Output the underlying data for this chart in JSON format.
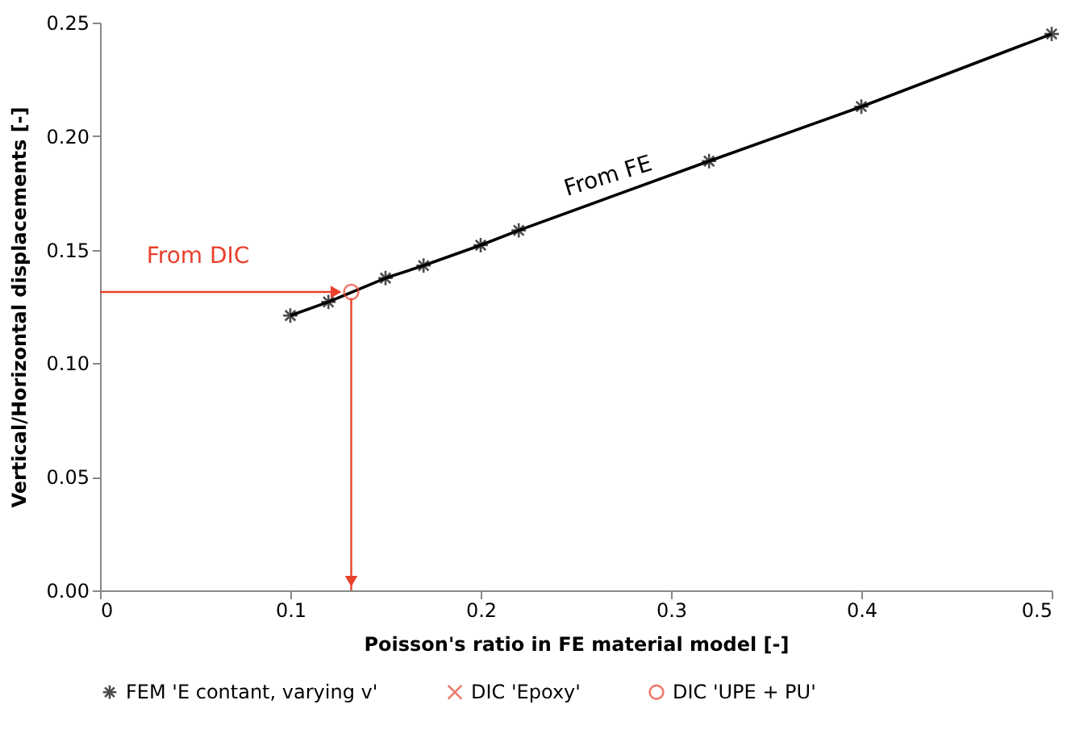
{
  "chart_data": {
    "type": "line",
    "xlabel": "Poisson's ratio in FE material model [-]",
    "ylabel": "Vertical/Horizontal displacements [-]",
    "xlim": [
      0,
      0.5
    ],
    "xticks": [
      0,
      0.1,
      0.2,
      0.3,
      0.4,
      0.5
    ],
    "ylim": [
      0,
      0.25
    ],
    "yticks": [
      {
        "value": 0,
        "label": "0.00"
      },
      {
        "value": 0.05,
        "label": "0.05"
      },
      {
        "value": 0.1,
        "label": "0.10"
      },
      {
        "value": 0.15,
        "label": "0.15"
      },
      {
        "value": 0.2,
        "label": "0.20"
      },
      {
        "value": 0.25,
        "label": "0.25"
      }
    ],
    "legend": "bottom",
    "grid": false,
    "series": [
      {
        "name": "FEM 'E contant, varying v'",
        "marker": "cross",
        "color": "#000000",
        "x": [
          0.1,
          0.12,
          0.15,
          0.17,
          0.2,
          0.22,
          0.32,
          0.4,
          0.5
        ],
        "values": [
          0.121,
          0.127,
          0.1375,
          0.143,
          0.152,
          0.1585,
          0.189,
          0.213,
          0.245
        ]
      },
      {
        "name": "DIC 'Epoxy'",
        "type": "scatter",
        "marker": "cross",
        "color": "#e8412c"
      },
      {
        "name": "DIC 'UPE + PU'",
        "type": "scatter",
        "marker": "circle",
        "color": "#e8412c",
        "x": [
          0.132
        ],
        "values": [
          0.1314
        ]
      }
    ],
    "annotations": [
      "From DIC",
      {
        "text": "From FE",
        "x": 0.27,
        "y": 0.174
      }
    ]
  }
}
